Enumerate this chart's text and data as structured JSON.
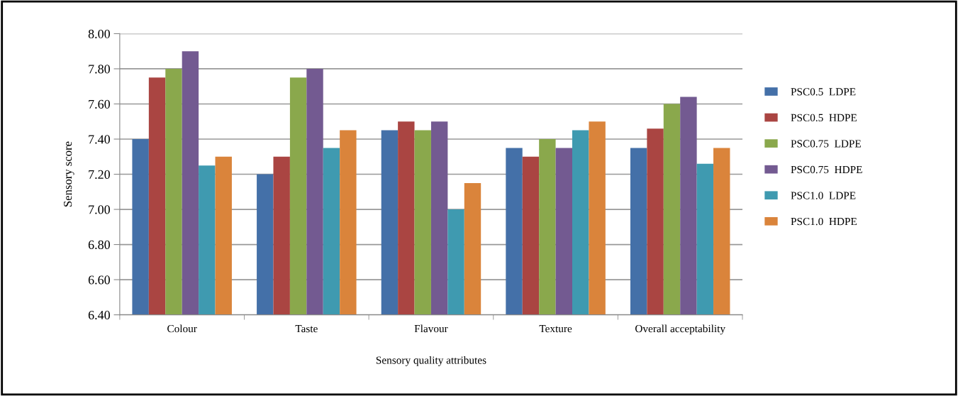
{
  "chart_data": {
    "type": "bar",
    "xlabel": "Sensory quality attributes",
    "ylabel": "Sensory score",
    "categories": [
      "Colour",
      "Taste",
      "Flavour",
      "Texture",
      "Overall acceptability"
    ],
    "series": [
      {
        "name": "PSC0.5  LDPE",
        "color": "#4470a8",
        "values": [
          7.4,
          7.2,
          7.45,
          7.35,
          7.35
        ]
      },
      {
        "name": "PSC0.5  HDPE",
        "color": "#aa4542",
        "values": [
          7.75,
          7.3,
          7.5,
          7.3,
          7.46
        ]
      },
      {
        "name": "PSC0.75  LDPE",
        "color": "#8aa84c",
        "values": [
          7.8,
          7.75,
          7.45,
          7.4,
          7.6
        ]
      },
      {
        "name": "PSC0.75  HDPE",
        "color": "#735a91",
        "values": [
          7.9,
          7.8,
          7.5,
          7.35,
          7.64
        ]
      },
      {
        "name": "PSC1.0  LDPE",
        "color": "#3f9ab0",
        "values": [
          7.25,
          7.35,
          7.0,
          7.45,
          7.26
        ]
      },
      {
        "name": "PSC1.0  HDPE",
        "color": "#da843b",
        "values": [
          7.3,
          7.45,
          7.15,
          7.5,
          7.35
        ]
      }
    ],
    "ylim": [
      6.4,
      8.0
    ],
    "yticks": [
      {
        "value": 6.4,
        "label": "6.40"
      },
      {
        "value": 6.6,
        "label": "6.60"
      },
      {
        "value": 6.8,
        "label": "6.80"
      },
      {
        "value": 7.0,
        "label": "7.00"
      },
      {
        "value": 7.2,
        "label": "7.20"
      },
      {
        "value": 7.4,
        "label": "7.40"
      },
      {
        "value": 7.6,
        "label": "7.60"
      },
      {
        "value": 7.8,
        "label": "7.80"
      },
      {
        "value": 8.0,
        "label": "8.00"
      }
    ],
    "grid": "y",
    "legend": "right"
  }
}
